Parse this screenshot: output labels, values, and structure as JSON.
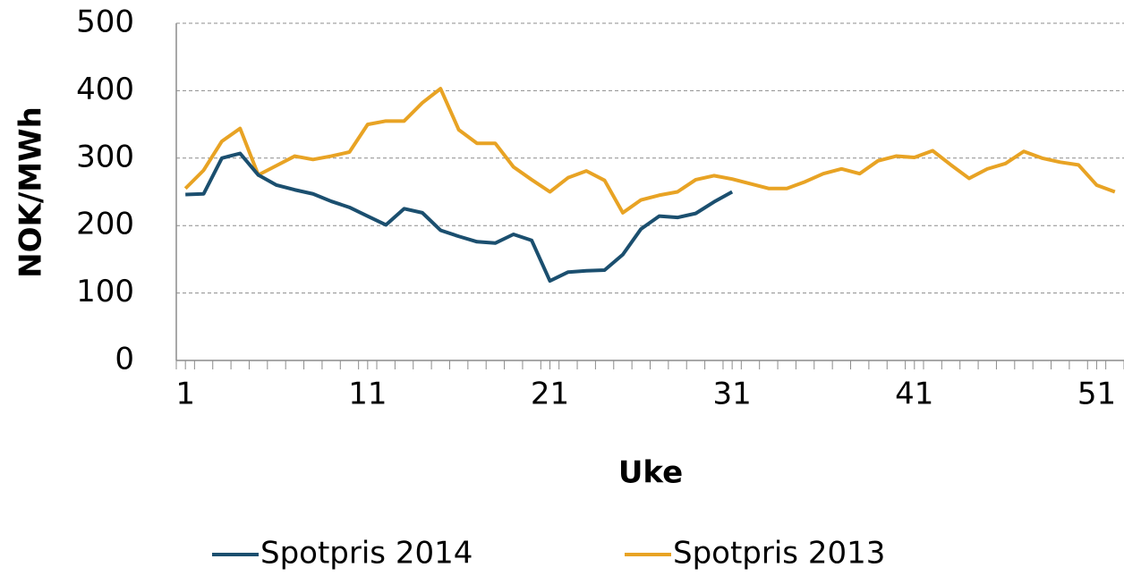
{
  "chart_data": {
    "type": "line",
    "x_label": "Uke",
    "y_label": "NOK/MWh",
    "x": [
      1,
      2,
      3,
      4,
      5,
      6,
      7,
      8,
      9,
      10,
      11,
      12,
      13,
      14,
      15,
      16,
      17,
      18,
      19,
      20,
      21,
      22,
      23,
      24,
      25,
      26,
      27,
      28,
      29,
      30,
      31,
      32,
      33,
      34,
      35,
      36,
      37,
      38,
      39,
      40,
      41,
      42,
      43,
      44,
      45,
      46,
      47,
      48,
      49,
      50,
      51,
      52
    ],
    "series": [
      {
        "name": "Spotpris 2014",
        "color": "#1b4f6f",
        "values": [
          246,
          247,
          300,
          307,
          275,
          260,
          253,
          247,
          236,
          227,
          214,
          201,
          225,
          219,
          193,
          184,
          176,
          174,
          187,
          178,
          118,
          131,
          133,
          134,
          157,
          195,
          214,
          212,
          218,
          235,
          250,
          null,
          null,
          null,
          null,
          null,
          null,
          null,
          null,
          null,
          null,
          null,
          null,
          null,
          null,
          null,
          null,
          null,
          null,
          null,
          null,
          null
        ]
      },
      {
        "name": "Spotpris 2013",
        "color": "#e8a324",
        "values": [
          255,
          282,
          325,
          344,
          275,
          289,
          303,
          298,
          303,
          309,
          350,
          355,
          355,
          382,
          403,
          342,
          322,
          322,
          287,
          268,
          250,
          271,
          281,
          267,
          219,
          238,
          245,
          250,
          268,
          274,
          269,
          262,
          255,
          255,
          265,
          277,
          284,
          277,
          296,
          303,
          301,
          311,
          290,
          270,
          284,
          292,
          310,
          300,
          294,
          290,
          260,
          250
        ]
      }
    ],
    "xlim": [
      0.5,
      52.5
    ],
    "xticks": [
      1,
      11,
      21,
      31,
      41,
      51
    ],
    "ylim": [
      0,
      500
    ],
    "yticks": [
      0,
      100,
      200,
      300,
      400,
      500
    ],
    "grid": true,
    "legend": "bottom"
  }
}
